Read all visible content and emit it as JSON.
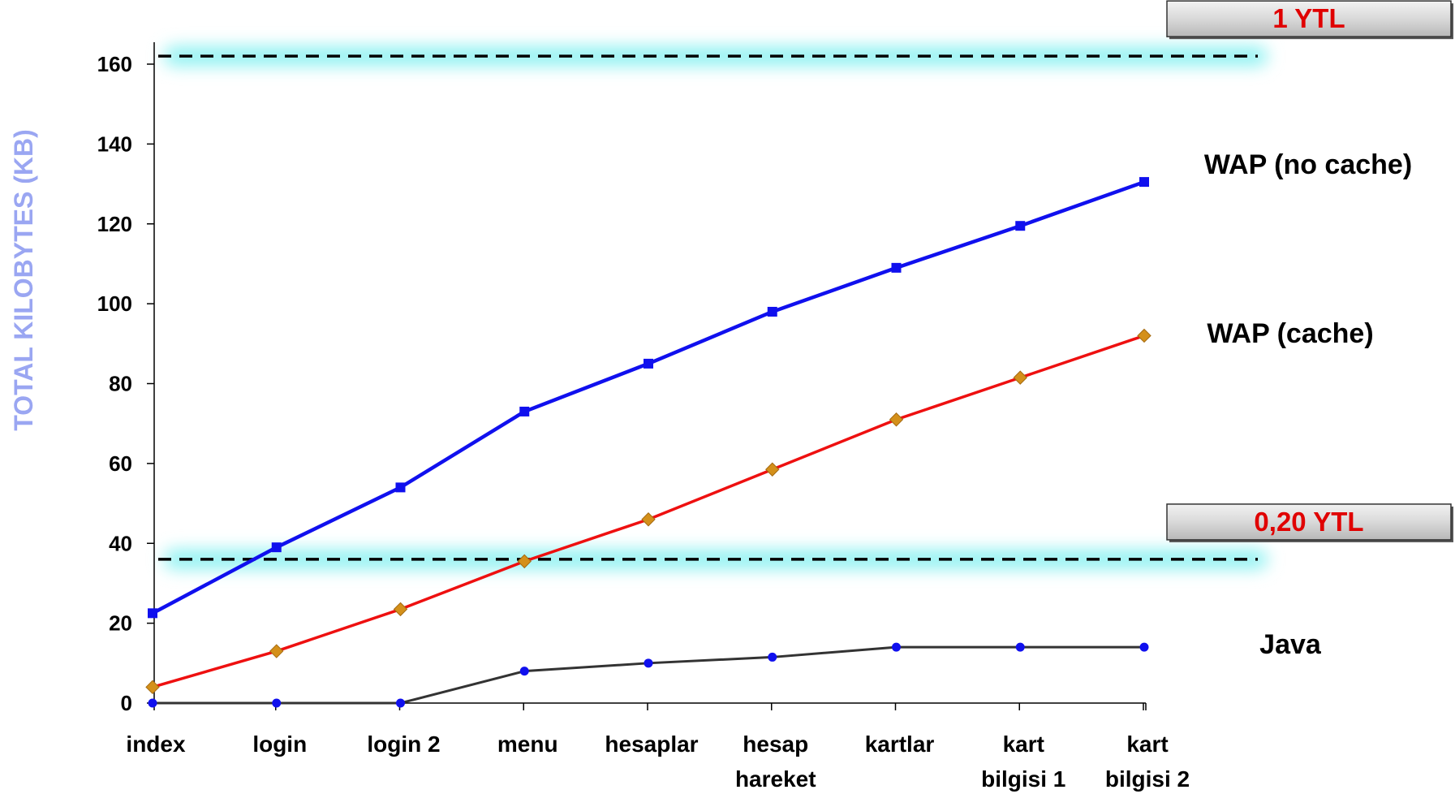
{
  "chart_data": {
    "type": "line",
    "ylabel": "TOTAL KILOBYTES (KB)",
    "xlabel": "",
    "ylim": [
      0,
      160
    ],
    "yticks": [
      0,
      20,
      40,
      60,
      80,
      100,
      120,
      140,
      160
    ],
    "grid": false,
    "categories": [
      [
        "index"
      ],
      [
        "login"
      ],
      [
        "login 2"
      ],
      [
        "menu"
      ],
      [
        "hesaplar"
      ],
      [
        "hesap",
        "hareket"
      ],
      [
        "kartlar"
      ],
      [
        "kart",
        "bilgisi 1"
      ],
      [
        "kart",
        "bilgisi 2"
      ]
    ],
    "series": [
      {
        "name": "WAP (no cache)",
        "color": "#1010ee",
        "marker": "square",
        "values": [
          22.5,
          39,
          54,
          73,
          85,
          98,
          109,
          119.5,
          130.5
        ]
      },
      {
        "name": "WAP (cache)",
        "color": "#ee1010",
        "marker": "diamond",
        "values": [
          4,
          13,
          23.5,
          35.5,
          46,
          58.5,
          71,
          81.5,
          92
        ]
      },
      {
        "name": "Java",
        "color": "#333333",
        "marker": "circle",
        "values": [
          0,
          0,
          0,
          8,
          10,
          11.5,
          14,
          14,
          14
        ]
      }
    ],
    "threshold_lines": [
      {
        "value": 162,
        "label": "1 YTL"
      },
      {
        "value": 36,
        "label": "0,20 YTL"
      }
    ],
    "colors": {
      "ylabel": "#9aa6f2",
      "glow": "#8ff2f2",
      "badge_text": "#e00000",
      "badge_fill": "#cfcfcf"
    }
  }
}
